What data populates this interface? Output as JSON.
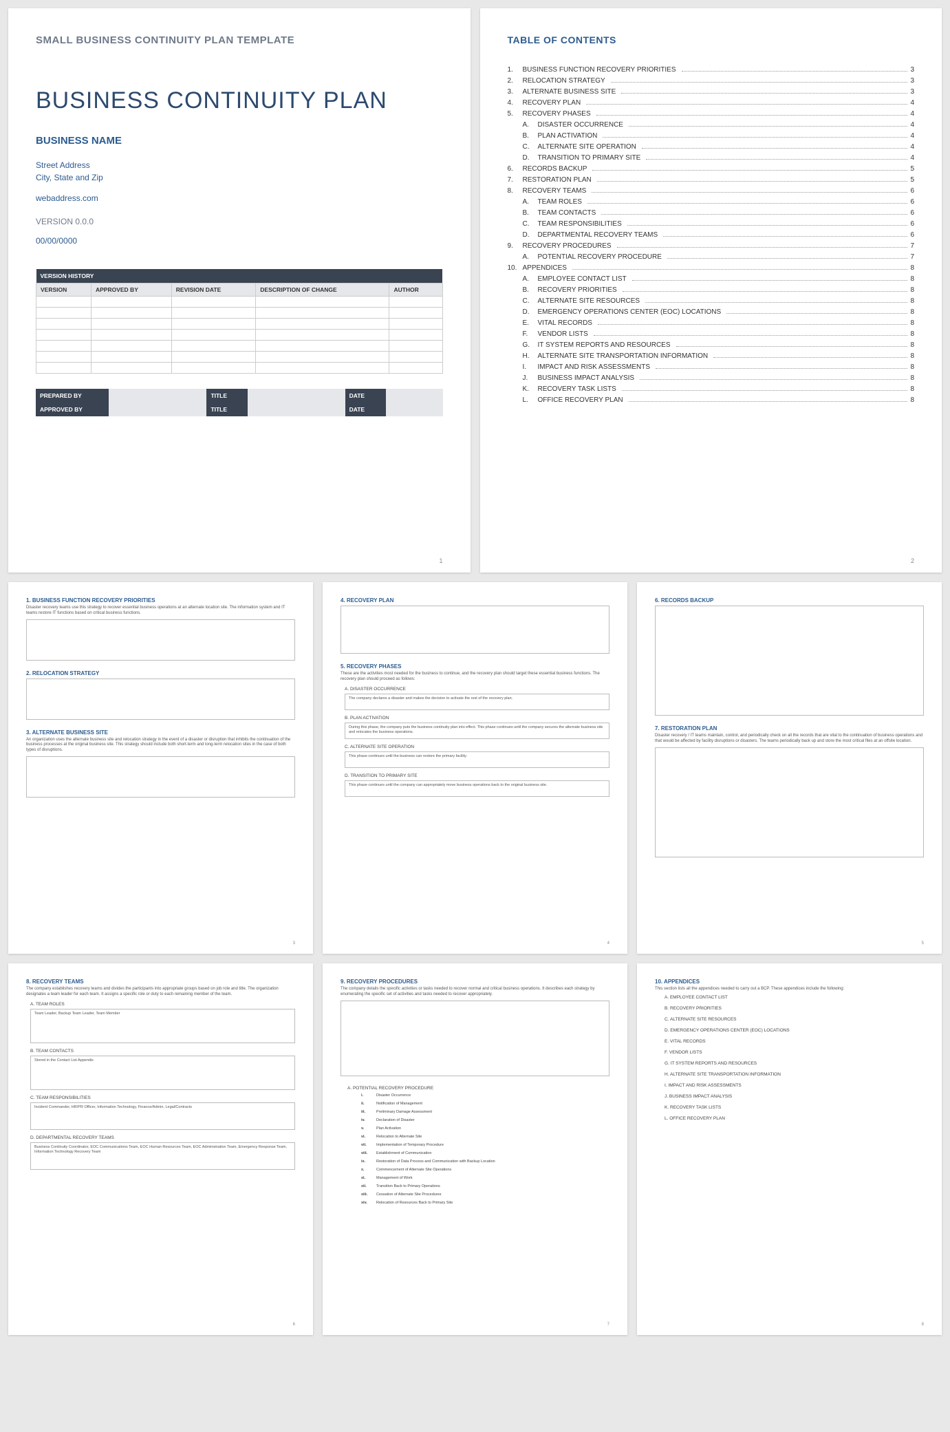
{
  "colors": {
    "heading": "#2c5b8e",
    "muted": "#6e7a8a",
    "tableHeader": "#3a4352",
    "tableSub": "#e5e7ea",
    "border": "#cccccc"
  },
  "page1": {
    "template_label": "SMALL BUSINESS CONTINUITY PLAN TEMPLATE",
    "title": "BUSINESS CONTINUITY PLAN",
    "business_name": "BUSINESS NAME",
    "street": "Street Address",
    "city": "City, State and Zip",
    "web": "webaddress.com",
    "version": "VERSION 0.0.0",
    "date": "00/00/0000",
    "vh_header": "VERSION HISTORY",
    "vh_cols": [
      "VERSION",
      "APPROVED BY",
      "REVISION DATE",
      "DESCRIPTION OF CHANGE",
      "AUTHOR"
    ],
    "vh_row_count": 7,
    "sig": [
      {
        "l": "PREPARED BY",
        "m": "TITLE",
        "r": "DATE"
      },
      {
        "l": "APPROVED BY",
        "m": "TITLE",
        "r": "DATE"
      }
    ],
    "page_num": "1"
  },
  "toc": {
    "title": "TABLE OF CONTENTS",
    "items": [
      {
        "n": "1.",
        "t": "BUSINESS FUNCTION RECOVERY PRIORITIES",
        "p": "3"
      },
      {
        "n": "2.",
        "t": "RELOCATION STRATEGY",
        "p": "3"
      },
      {
        "n": "3.",
        "t": "ALTERNATE BUSINESS SITE",
        "p": "3"
      },
      {
        "n": "4.",
        "t": "RECOVERY PLAN",
        "p": "4"
      },
      {
        "n": "5.",
        "t": "RECOVERY PHASES",
        "p": "4"
      },
      {
        "n": "A.",
        "t": "DISASTER OCCURRENCE",
        "p": "4",
        "sub": true
      },
      {
        "n": "B.",
        "t": "PLAN ACTIVATION",
        "p": "4",
        "sub": true
      },
      {
        "n": "C.",
        "t": "ALTERNATE SITE OPERATION",
        "p": "4",
        "sub": true
      },
      {
        "n": "D.",
        "t": "TRANSITION TO PRIMARY SITE",
        "p": "4",
        "sub": true
      },
      {
        "n": "6.",
        "t": "RECORDS BACKUP",
        "p": "5"
      },
      {
        "n": "7.",
        "t": "RESTORATION PLAN",
        "p": "5"
      },
      {
        "n": "8.",
        "t": "RECOVERY TEAMS",
        "p": "6"
      },
      {
        "n": "A.",
        "t": "TEAM ROLES",
        "p": "6",
        "sub": true
      },
      {
        "n": "B.",
        "t": "TEAM CONTACTS",
        "p": "6",
        "sub": true
      },
      {
        "n": "C.",
        "t": "TEAM RESPONSIBILITIES",
        "p": "6",
        "sub": true
      },
      {
        "n": "D.",
        "t": "DEPARTMENTAL RECOVERY TEAMS",
        "p": "6",
        "sub": true
      },
      {
        "n": "9.",
        "t": "RECOVERY PROCEDURES",
        "p": "7"
      },
      {
        "n": "A.",
        "t": "POTENTIAL RECOVERY PROCEDURE",
        "p": "7",
        "sub": true
      },
      {
        "n": "10.",
        "t": "APPENDICES",
        "p": "8"
      },
      {
        "n": "A.",
        "t": "EMPLOYEE CONTACT LIST",
        "p": "8",
        "sub": true
      },
      {
        "n": "B.",
        "t": "RECOVERY PRIORITIES",
        "p": "8",
        "sub": true
      },
      {
        "n": "C.",
        "t": "ALTERNATE SITE RESOURCES",
        "p": "8",
        "sub": true
      },
      {
        "n": "D.",
        "t": "EMERGENCY OPERATIONS CENTER (EOC) LOCATIONS",
        "p": "8",
        "sub": true
      },
      {
        "n": "E.",
        "t": "VITAL RECORDS",
        "p": "8",
        "sub": true
      },
      {
        "n": "F.",
        "t": "VENDOR LISTS",
        "p": "8",
        "sub": true
      },
      {
        "n": "G.",
        "t": "IT SYSTEM REPORTS AND RESOURCES",
        "p": "8",
        "sub": true
      },
      {
        "n": "H.",
        "t": "ALTERNATE SITE TRANSPORTATION INFORMATION",
        "p": "8",
        "sub": true
      },
      {
        "n": "I.",
        "t": "IMPACT AND RISK ASSESSMENTS",
        "p": "8",
        "sub": true
      },
      {
        "n": "J.",
        "t": "BUSINESS IMPACT ANALYSIS",
        "p": "8",
        "sub": true
      },
      {
        "n": "K.",
        "t": "RECOVERY TASK LISTS",
        "p": "8",
        "sub": true
      },
      {
        "n": "L.",
        "t": "OFFICE RECOVERY PLAN",
        "p": "8",
        "sub": true
      }
    ],
    "page_num": "2"
  },
  "p3": {
    "s1": {
      "h": "1.  BUSINESS FUNCTION RECOVERY PRIORITIES",
      "d": "Disaster recovery teams use this strategy to recover essential business operations at an alternate location site. The information system and IT teams restore IT functions based on critical business functions."
    },
    "s2": {
      "h": "2.  RELOCATION STRATEGY"
    },
    "s3": {
      "h": "3.  ALTERNATE BUSINESS SITE",
      "d": "An organization uses the alternate business site and relocation strategy in the event of a disaster or disruption that inhibits the continuation of the business processes at the original business site. This strategy should include both short-term and long-term relocation sites in the case of both types of disruptions."
    },
    "page_num": "3"
  },
  "p4": {
    "s4": {
      "h": "4.  RECOVERY PLAN"
    },
    "s5": {
      "h": "5.  RECOVERY PHASES",
      "d": "These are the activities most needed for the business to continue, and the recovery plan should target these essential business functions. The recovery plan should proceed as follows:"
    },
    "a": {
      "h": "A.  DISASTER OCCURRENCE",
      "t": "The company declares a disaster and makes the decision to activate the rest of the recovery plan."
    },
    "b": {
      "h": "B.  PLAN ACTIVATION",
      "t": "During this phase, the company puts the business continuity plan into effect. This phase continues until the company secures the alternate business site and relocates the business operations."
    },
    "c": {
      "h": "C.  ALTERNATE SITE OPERATION",
      "t": "This phase continues until the business can restore the primary facility."
    },
    "d": {
      "h": "D.  TRANSITION TO PRIMARY SITE",
      "t": "This phase continues until the company can appropriately move business operations back to the original business site."
    },
    "page_num": "4"
  },
  "p5": {
    "s6": {
      "h": "6.  RECORDS BACKUP"
    },
    "s7": {
      "h": "7.  RESTORATION PLAN",
      "d": "Disaster recovery / IT teams maintain, control, and periodically check on all the records that are vital to the continuation of business operations and that would be affected by facility disruptions or disasters. The teams periodically back up and store the most critical files at an offsite location."
    },
    "page_num": "5"
  },
  "p6": {
    "s8": {
      "h": "8.  RECOVERY TEAMS",
      "d": "The company establishes recovery teams and divides the participants into appropriate groups based on job role and title. The organization designates a team leader for each team. It assigns a specific role or duty to each remaining member of the team."
    },
    "a": {
      "h": "A.  TEAM ROLES",
      "t": "Team Leader, Backup Team Leader, Team Member"
    },
    "b": {
      "h": "B.  TEAM CONTACTS",
      "t": "Stored in the Contact List Appendix"
    },
    "c": {
      "h": "C.  TEAM RESPONSIBILITIES",
      "t": "Incident Commander, HR/PR Officer, Information Technology, Finance/Admin, Legal/Contracts"
    },
    "d": {
      "h": "D.  DEPARTMENTAL RECOVERY TEAMS",
      "t": "Business Continuity Coordinator, EOC Communications Team, EOC Human Resources Team, EOC Administration Team, Emergency Response Team, Information Technology Recovery Team"
    },
    "page_num": "6"
  },
  "p7": {
    "s9": {
      "h": "9.  RECOVERY PROCEDURES",
      "d": "The company details the specific activities or tasks needed to recover normal and critical business operations. It describes each strategy by enumerating the specific set of activities and tasks needed to recover appropriately."
    },
    "subA": "A.  POTENTIAL RECOVERY PROCEDURE",
    "steps": [
      {
        "r": "i.",
        "t": "Disaster Occurrence"
      },
      {
        "r": "ii.",
        "t": "Notification of Management"
      },
      {
        "r": "iii.",
        "t": "Preliminary Damage Assessment"
      },
      {
        "r": "iv.",
        "t": "Declaration of Disaster"
      },
      {
        "r": "v.",
        "t": "Plan Activation"
      },
      {
        "r": "vi.",
        "t": "Relocation to Alternate Site"
      },
      {
        "r": "vii.",
        "t": "Implementation of Temporary Procedure"
      },
      {
        "r": "viii.",
        "t": "Establishment of Communication"
      },
      {
        "r": "ix.",
        "t": "Restoration of Data Process and Communication with Backup Location"
      },
      {
        "r": "x.",
        "t": "Commencement of Alternate Site Operations"
      },
      {
        "r": "xi.",
        "t": "Management of Work"
      },
      {
        "r": "xii.",
        "t": "Transition Back to Primary Operations"
      },
      {
        "r": "xiii.",
        "t": "Cessation of Alternate Site Procedures"
      },
      {
        "r": "xiv.",
        "t": "Relocation of Resources Back to Primary Site"
      }
    ],
    "page_num": "7"
  },
  "p8": {
    "h": "10.   APPENDICES",
    "d": "This section lists all the appendices needed to carry out a BCP. These appendices include the following:",
    "items": [
      "A.  EMPLOYEE CONTACT LIST",
      "B.  RECOVERY PRIORITIES",
      "C.  ALTERNATE SITE RESOURCES",
      "D.  EMERGENCY OPERATIONS CENTER (EOC) LOCATIONS",
      "E.  VITAL RECORDS",
      "F.  VENDOR LISTS",
      "G.  IT SYSTEM REPORTS AND RESOURCES",
      "H.  ALTERNATE SITE TRANSPORTATION INFORMATION",
      "I.  IMPACT AND RISK ASSESSMENTS",
      "J.  BUSINESS IMPACT ANALYSIS",
      "K.  RECOVERY TASK LISTS",
      "L.  OFFICE RECOVERY PLAN"
    ],
    "page_num": "8"
  }
}
